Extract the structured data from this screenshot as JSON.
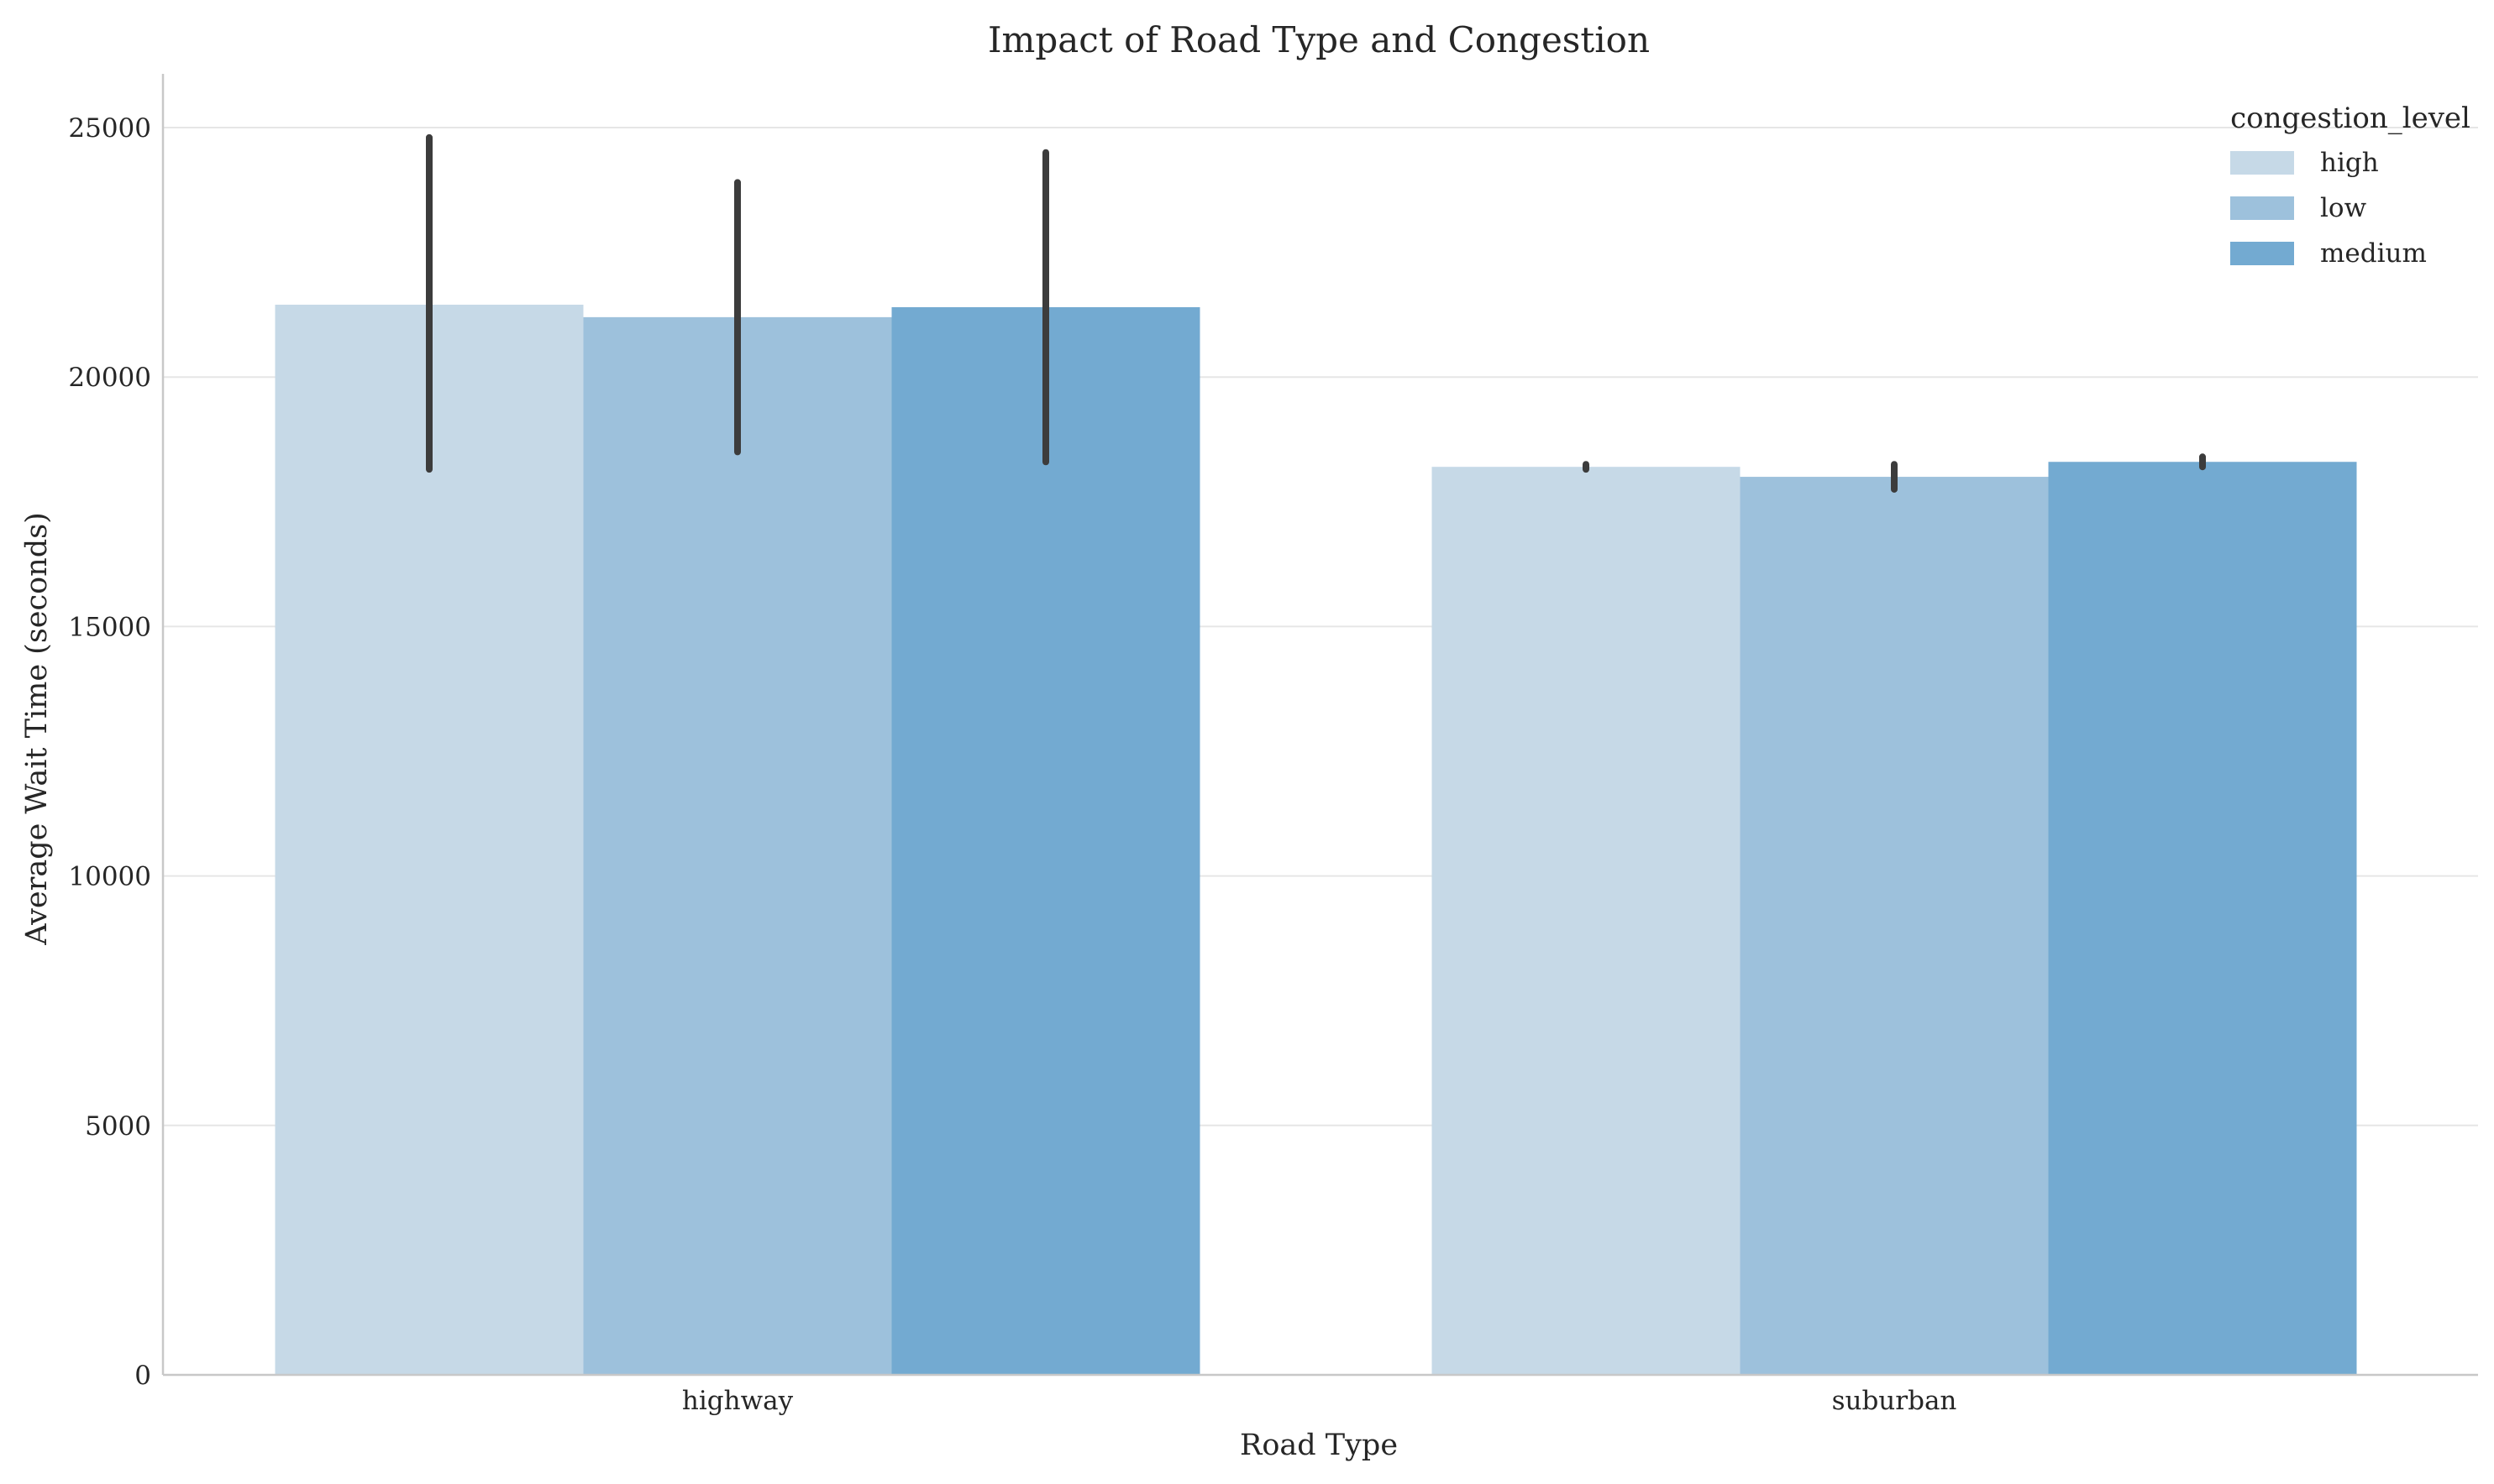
{
  "chart_data": {
    "type": "bar",
    "title": "Impact of Road Type and Congestion",
    "xlabel": "Road Type",
    "ylabel": "Average Wait Time (seconds)",
    "categories": [
      "highway",
      "suburban"
    ],
    "ylim": [
      0,
      26000
    ],
    "yticks": [
      0,
      5000,
      10000,
      15000,
      20000,
      25000
    ],
    "ytick_labels": [
      "0",
      "5000",
      "10000",
      "15000",
      "20000",
      "25000"
    ],
    "grid": "horizontal",
    "legend": {
      "title": "congestion_level",
      "placement": "top-right"
    },
    "series": [
      {
        "name": "high",
        "color": "#c6d9e7",
        "values": [
          21450,
          18200
        ],
        "error_low": [
          18150,
          18150
        ],
        "error_high": [
          24800,
          18250
        ]
      },
      {
        "name": "low",
        "color": "#9dc1dc",
        "values": [
          21200,
          18000
        ],
        "error_low": [
          18500,
          17750
        ],
        "error_high": [
          23900,
          18250
        ]
      },
      {
        "name": "medium",
        "color": "#73aad1",
        "values": [
          21400,
          18300
        ],
        "error_low": [
          18300,
          18200
        ],
        "error_high": [
          24500,
          18400
        ]
      }
    ],
    "error_bar_color": "#3c3c3c"
  }
}
